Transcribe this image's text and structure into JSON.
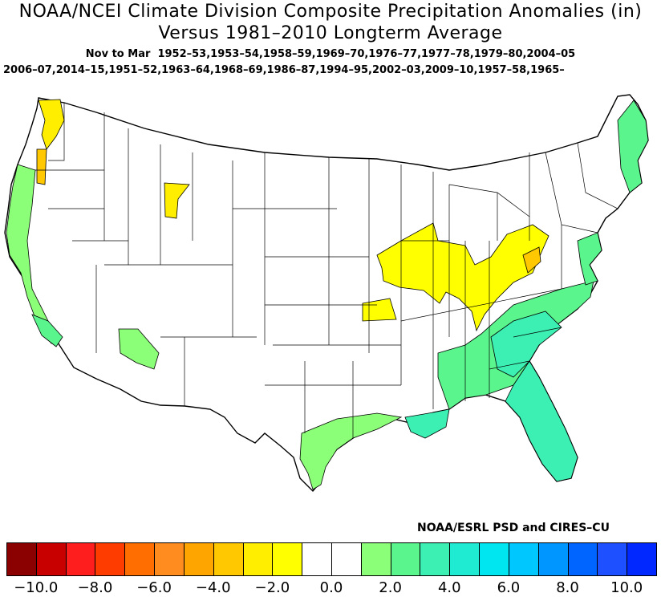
{
  "title_line1": "NOAA/NCEI Climate Division Composite Precipitation Anomalies (in)",
  "title_line2": "Versus 1981–2010 Longterm Average",
  "season_label": "Nov to Mar",
  "years_line1": "1952–53,1953–54,1958–59,1969–70,1976–77,1977–78,1979–80,2004–05",
  "years_line2": "2006–07,2014–15,1951–52,1963–64,1968–69,1986–87,1994–95,2002–03,2009–10,1957–58,1965–",
  "credit": "NOAA/ESRL PSD and CIRES–CU",
  "colorbar": {
    "colors": [
      "#8b0000",
      "#c80000",
      "#ff1e1e",
      "#ff3c00",
      "#ff6e00",
      "#ff8c1e",
      "#ffa500",
      "#ffc800",
      "#ffee00",
      "#ffff00",
      "#ffffff",
      "#ffffff",
      "#8cff78",
      "#5af58c",
      "#3cf0b4",
      "#1eebd2",
      "#00e6f0",
      "#00c8ff",
      "#0096ff",
      "#0064ff",
      "#1e50ff",
      "#0028ff"
    ],
    "tick_labels": [
      "−10.0",
      "−8.0",
      "−6.0",
      "−4.0",
      "−2.0",
      "0.0",
      "2.0",
      "4.0",
      "6.0",
      "8.0",
      "10.0"
    ]
  },
  "legend_colors": {
    "dry_light": "#ffff00",
    "dry_mod": "#ffee00",
    "dry_orange": "#ffc800",
    "wet_light": "#8cff78",
    "wet_mod": "#5af58c",
    "wet_teal": "#3cf0b4"
  }
}
